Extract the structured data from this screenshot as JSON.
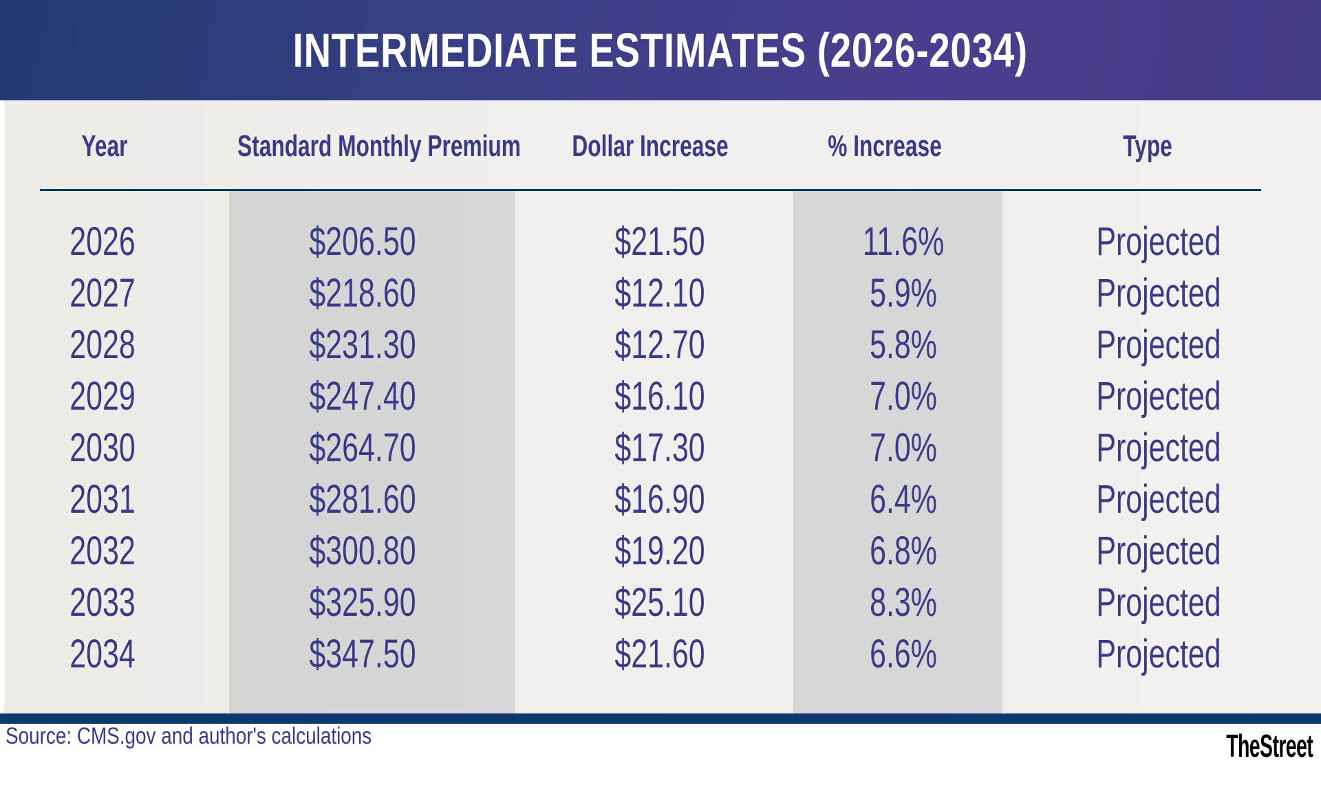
{
  "title": "INTERMEDIATE ESTIMATES (2026-2034)",
  "columns": [
    "Year",
    "Standard Monthly Premium",
    "Dollar Increase",
    "% Increase",
    "Type"
  ],
  "rows": [
    [
      "2026",
      "$206.50",
      "$21.50",
      "11.6%",
      "Projected"
    ],
    [
      "2027",
      "$218.60",
      "$12.10",
      "5.9%",
      "Projected"
    ],
    [
      "2028",
      "$231.30",
      "$12.70",
      "5.8%",
      "Projected"
    ],
    [
      "2029",
      "$247.40",
      "$16.10",
      "7.0%",
      "Projected"
    ],
    [
      "2030",
      "$264.70",
      "$17.30",
      "7.0%",
      "Projected"
    ],
    [
      "2031",
      "$281.60",
      "$16.90",
      "6.4%",
      "Projected"
    ],
    [
      "2032",
      "$300.80",
      "$19.20",
      "6.8%",
      "Projected"
    ],
    [
      "2033",
      "$325.90",
      "$25.10",
      "8.3%",
      "Projected"
    ],
    [
      "2034",
      "$347.50",
      "$21.60",
      "6.6%",
      "Projected"
    ]
  ],
  "source": "Source: CMS.gov and author's calculations",
  "logo": "TheStreet",
  "colors": {
    "header": "#433c86",
    "text": "#3a3a86",
    "rule": "#0b3a6e"
  }
}
